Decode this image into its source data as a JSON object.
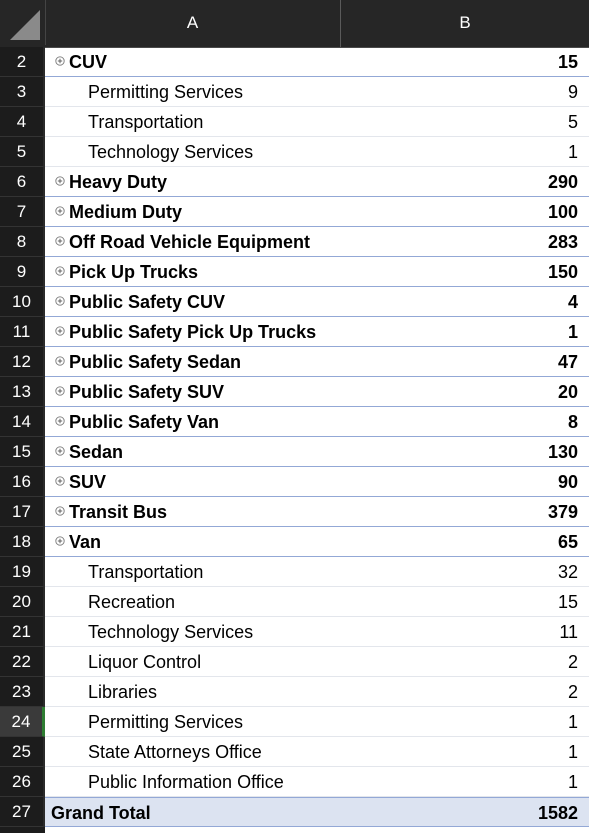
{
  "columns": [
    "A",
    "B"
  ],
  "expander_icon": "circle-plus-icon",
  "accent_colors": {
    "header_bg": "#262626",
    "row_number_bg": "#1c1c1c",
    "parent_border": "#93a8d6",
    "total_bg": "#dce3f1",
    "selected_row_marker": "#2e7d32"
  },
  "rows": [
    {
      "num": "2",
      "label": "CUV",
      "value": "15",
      "type": "parent"
    },
    {
      "num": "3",
      "label": "Permitting Services",
      "value": "9",
      "type": "child"
    },
    {
      "num": "4",
      "label": "Transportation",
      "value": "5",
      "type": "child"
    },
    {
      "num": "5",
      "label": "Technology Services",
      "value": "1",
      "type": "child"
    },
    {
      "num": "6",
      "label": "Heavy Duty",
      "value": "290",
      "type": "parent"
    },
    {
      "num": "7",
      "label": "Medium Duty",
      "value": "100",
      "type": "parent"
    },
    {
      "num": "8",
      "label": "Off Road Vehicle Equipment",
      "value": "283",
      "type": "parent"
    },
    {
      "num": "9",
      "label": "Pick Up Trucks",
      "value": "150",
      "type": "parent"
    },
    {
      "num": "10",
      "label": "Public Safety CUV",
      "value": "4",
      "type": "parent"
    },
    {
      "num": "11",
      "label": "Public Safety Pick Up Trucks",
      "value": "1",
      "type": "parent"
    },
    {
      "num": "12",
      "label": "Public Safety Sedan",
      "value": "47",
      "type": "parent"
    },
    {
      "num": "13",
      "label": "Public Safety SUV",
      "value": "20",
      "type": "parent"
    },
    {
      "num": "14",
      "label": "Public Safety Van",
      "value": "8",
      "type": "parent"
    },
    {
      "num": "15",
      "label": "Sedan",
      "value": "130",
      "type": "parent"
    },
    {
      "num": "16",
      "label": "SUV",
      "value": "90",
      "type": "parent"
    },
    {
      "num": "17",
      "label": "Transit Bus",
      "value": "379",
      "type": "parent"
    },
    {
      "num": "18",
      "label": "Van",
      "value": "65",
      "type": "parent"
    },
    {
      "num": "19",
      "label": "Transportation",
      "value": "32",
      "type": "child"
    },
    {
      "num": "20",
      "label": "Recreation",
      "value": "15",
      "type": "child"
    },
    {
      "num": "21",
      "label": "Technology Services",
      "value": "11",
      "type": "child"
    },
    {
      "num": "22",
      "label": "Liquor Control",
      "value": "2",
      "type": "child"
    },
    {
      "num": "23",
      "label": "Libraries",
      "value": "2",
      "type": "child"
    },
    {
      "num": "24",
      "label": "Permitting Services",
      "value": "1",
      "type": "child",
      "selected": true
    },
    {
      "num": "25",
      "label": "State Attorneys Office",
      "value": "1",
      "type": "child"
    },
    {
      "num": "26",
      "label": "Public Information Office",
      "value": "1",
      "type": "child"
    },
    {
      "num": "27",
      "label": "Grand Total",
      "value": "1582",
      "type": "total"
    }
  ]
}
